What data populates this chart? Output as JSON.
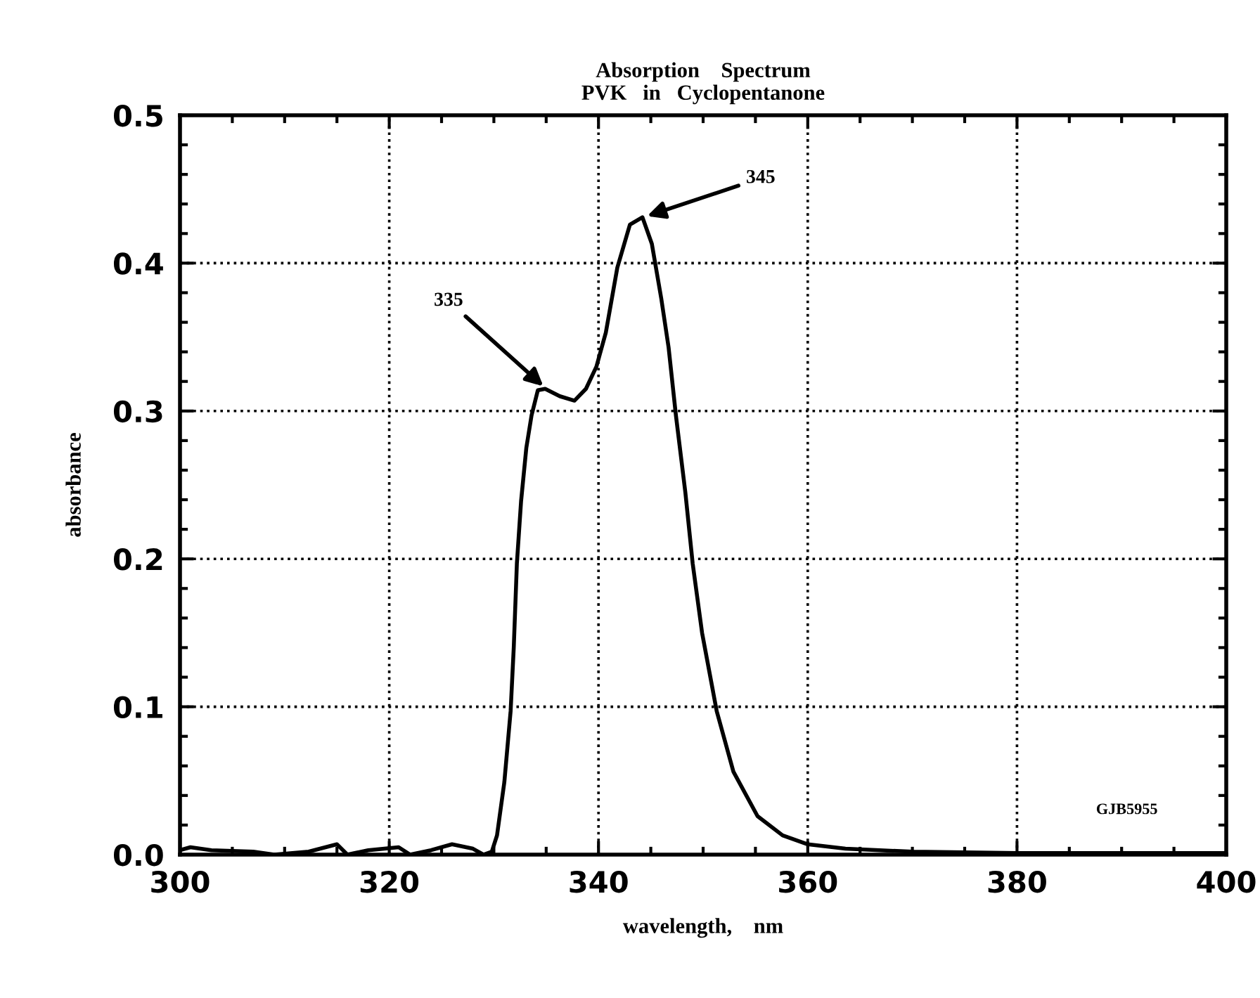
{
  "chart_data": {
    "type": "line",
    "title": "Absorption    Spectrum\nPVK   in   Cyclopentanone",
    "xlabel": "wavelength,    nm",
    "ylabel": "absorbance",
    "series": [
      {
        "color": "#000000",
        "x": [
          300,
          301,
          303,
          307,
          309,
          312.3,
          315,
          316,
          318,
          320.9,
          322,
          324,
          326,
          328,
          329,
          329.8,
          330.3,
          331.0,
          331.6,
          331.9,
          332.2,
          332.6,
          333.1,
          333.6,
          334.2,
          334.9,
          336.3,
          337.7,
          338.8,
          339.8,
          340.7,
          341.8,
          343.0,
          344.2,
          345.1,
          346.0,
          346.7,
          347.4,
          348.3,
          349.0,
          349.9,
          351.3,
          352.9,
          355.2,
          357.6,
          360,
          363.6,
          370,
          380,
          390,
          400
        ],
        "values": [
          0.003,
          0.005,
          0.003,
          0.002,
          0,
          0.002,
          0.007,
          0,
          0.003,
          0.005,
          0,
          0.003,
          0.007,
          0.004,
          0,
          0.002,
          0.013,
          0.049,
          0.097,
          0.14,
          0.197,
          0.239,
          0.275,
          0.297,
          0.314,
          0.315,
          0.31,
          0.307,
          0.315,
          0.33,
          0.353,
          0.397,
          0.426,
          0.431,
          0.413,
          0.376,
          0.343,
          0.297,
          0.245,
          0.197,
          0.15,
          0.097,
          0.056,
          0.026,
          0.013,
          0.007,
          0.004,
          0.002,
          0.001,
          0.001,
          0.001
        ]
      }
    ],
    "annotations": [
      {
        "text": "335",
        "x": 335,
        "y": 0.315
      },
      {
        "text": "345",
        "x": 344.3,
        "y": 0.431
      },
      "GJB5955"
    ],
    "xlim": [
      300,
      400
    ],
    "ylim": [
      0,
      0.5
    ],
    "xticks": [
      300,
      320,
      340,
      360,
      380,
      400
    ],
    "yticks": [
      {
        "value": 0,
        "label": "0.0"
      },
      {
        "value": 0.1,
        "label": "0.1"
      },
      {
        "value": 0.2,
        "label": "0.2"
      },
      {
        "value": 0.3,
        "label": "0.3"
      },
      {
        "value": 0.4,
        "label": "0.4"
      },
      {
        "value": 0.5,
        "label": "0.5"
      }
    ],
    "grid": true,
    "marker": "none",
    "line_style": "solid",
    "legend": false
  }
}
